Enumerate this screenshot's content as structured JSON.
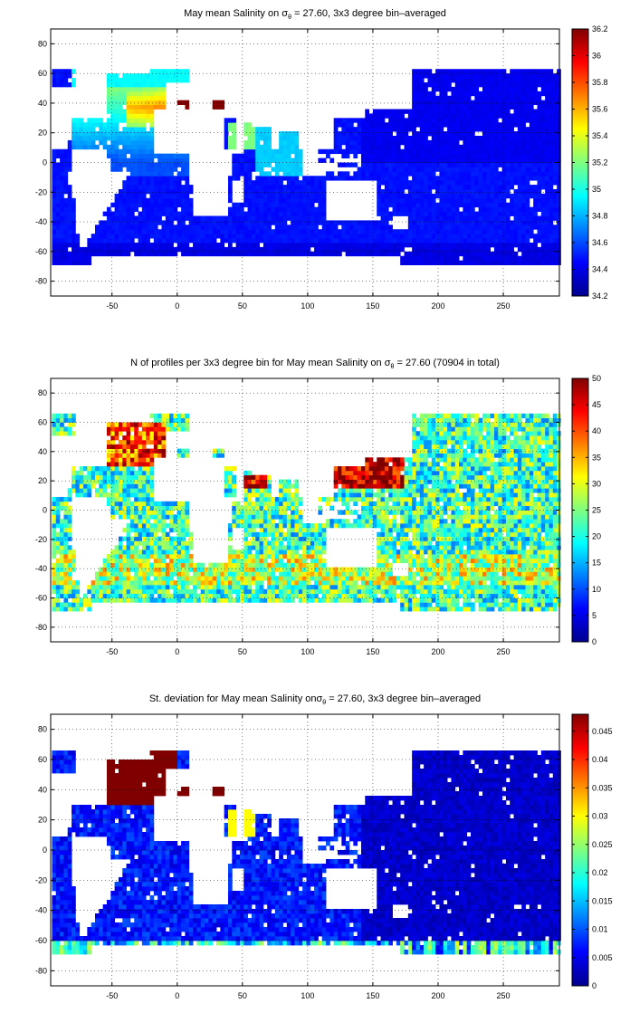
{
  "chart_data": [
    {
      "type": "heatmap",
      "title_prefix": "May mean Salinity on ",
      "title_sigma": "σ",
      "title_sub": "θ",
      "title_suffix": " = 27.60, 3x3 degree bin–averaged",
      "x_ticks": [
        "-50",
        "0",
        "50",
        "100",
        "150",
        "200",
        "250"
      ],
      "y_ticks": [
        "80",
        "60",
        "40",
        "20",
        "0",
        "-20",
        "-40",
        "-60",
        "-80"
      ],
      "xlim": [
        -97,
        293
      ],
      "ylim": [
        -90,
        90
      ],
      "colorbar_ticks": [
        "36.2",
        "36",
        "35.8",
        "35.6",
        "35.4",
        "35.2",
        "35",
        "34.8",
        "34.6",
        "34.4",
        "34.2"
      ],
      "colorbar_range": [
        34.2,
        36.2
      ],
      "colormap": "jet",
      "grid": true,
      "field": "salinity"
    },
    {
      "type": "heatmap",
      "title_prefix": "N of profiles per 3x3 degree bin for May mean Salinity on ",
      "title_sigma": "σ",
      "title_sub": "θ",
      "title_suffix": " = 27.60 (70904 in total)",
      "x_ticks": [
        "-50",
        "0",
        "50",
        "100",
        "150",
        "200",
        "250"
      ],
      "y_ticks": [
        "80",
        "60",
        "40",
        "20",
        "0",
        "-20",
        "-40",
        "-60",
        "-80"
      ],
      "xlim": [
        -97,
        293
      ],
      "ylim": [
        -90,
        90
      ],
      "colorbar_ticks": [
        "50",
        "45",
        "40",
        "35",
        "30",
        "25",
        "20",
        "15",
        "10",
        "5",
        "0"
      ],
      "colorbar_range": [
        0,
        50
      ],
      "colormap": "jet",
      "grid": true,
      "field": "count"
    },
    {
      "type": "heatmap",
      "title_prefix": "St. deviation for May mean Salinity on",
      "title_sigma": "σ",
      "title_sub": "θ",
      "title_suffix": " = 27.60, 3x3 degree bin–averaged",
      "x_ticks": [
        "-50",
        "0",
        "50",
        "100",
        "150",
        "200",
        "250"
      ],
      "y_ticks": [
        "80",
        "60",
        "40",
        "20",
        "0",
        "-20",
        "-40",
        "-60",
        "-80"
      ],
      "xlim": [
        -97,
        293
      ],
      "ylim": [
        -90,
        90
      ],
      "colorbar_ticks": [
        "0.045",
        "0.04",
        "0.035",
        "0.03",
        "0.025",
        "0.02",
        "0.015",
        "0.01",
        "0.005",
        "0"
      ],
      "colorbar_range": [
        0,
        0.048
      ],
      "colormap": "jet",
      "grid": true,
      "field": "stdev"
    }
  ]
}
